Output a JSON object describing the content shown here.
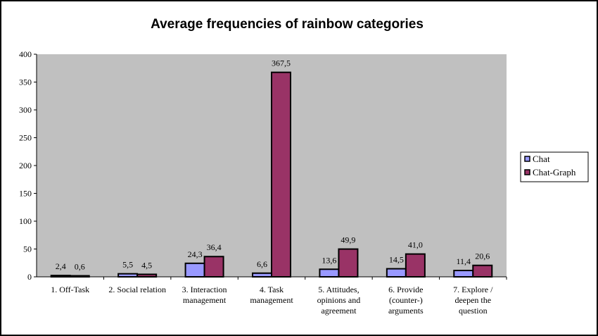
{
  "chart_data": {
    "type": "bar",
    "title": "Average frequencies of rainbow categories",
    "xlabel": "",
    "ylabel": "",
    "ylim": [
      0,
      400
    ],
    "yticks": [
      0,
      50,
      100,
      150,
      200,
      250,
      300,
      350,
      400
    ],
    "grid": false,
    "legend_position": "right",
    "categories": [
      [
        "1.   Off-Task"
      ],
      [
        "2. Social relation"
      ],
      [
        "3. Interaction",
        "management"
      ],
      [
        "4. Task",
        "management"
      ],
      [
        "5. Attitudes,",
        "opinions and",
        "agreement"
      ],
      [
        "6. Provide",
        "(counter-)",
        "arguments"
      ],
      [
        "7. Explore /",
        "deepen the",
        "question"
      ]
    ],
    "series": [
      {
        "name": "Chat",
        "color": "#9999ff",
        "values": [
          2.4,
          5.5,
          24.3,
          6.6,
          13.6,
          14.5,
          11.4
        ],
        "labels": [
          "2,4",
          "5,5",
          "24,3",
          "6,6",
          "13,6",
          "14,5",
          "11,4"
        ]
      },
      {
        "name": "Chat-Graph",
        "color": "#993366",
        "values": [
          0.6,
          4.5,
          36.4,
          367.5,
          49.9,
          41.0,
          20.6
        ],
        "labels": [
          "0,6",
          "4,5",
          "36,4",
          "367,5",
          "49,9",
          "41,0",
          "20,6"
        ]
      }
    ],
    "plot_background": "#c0c0c0"
  }
}
